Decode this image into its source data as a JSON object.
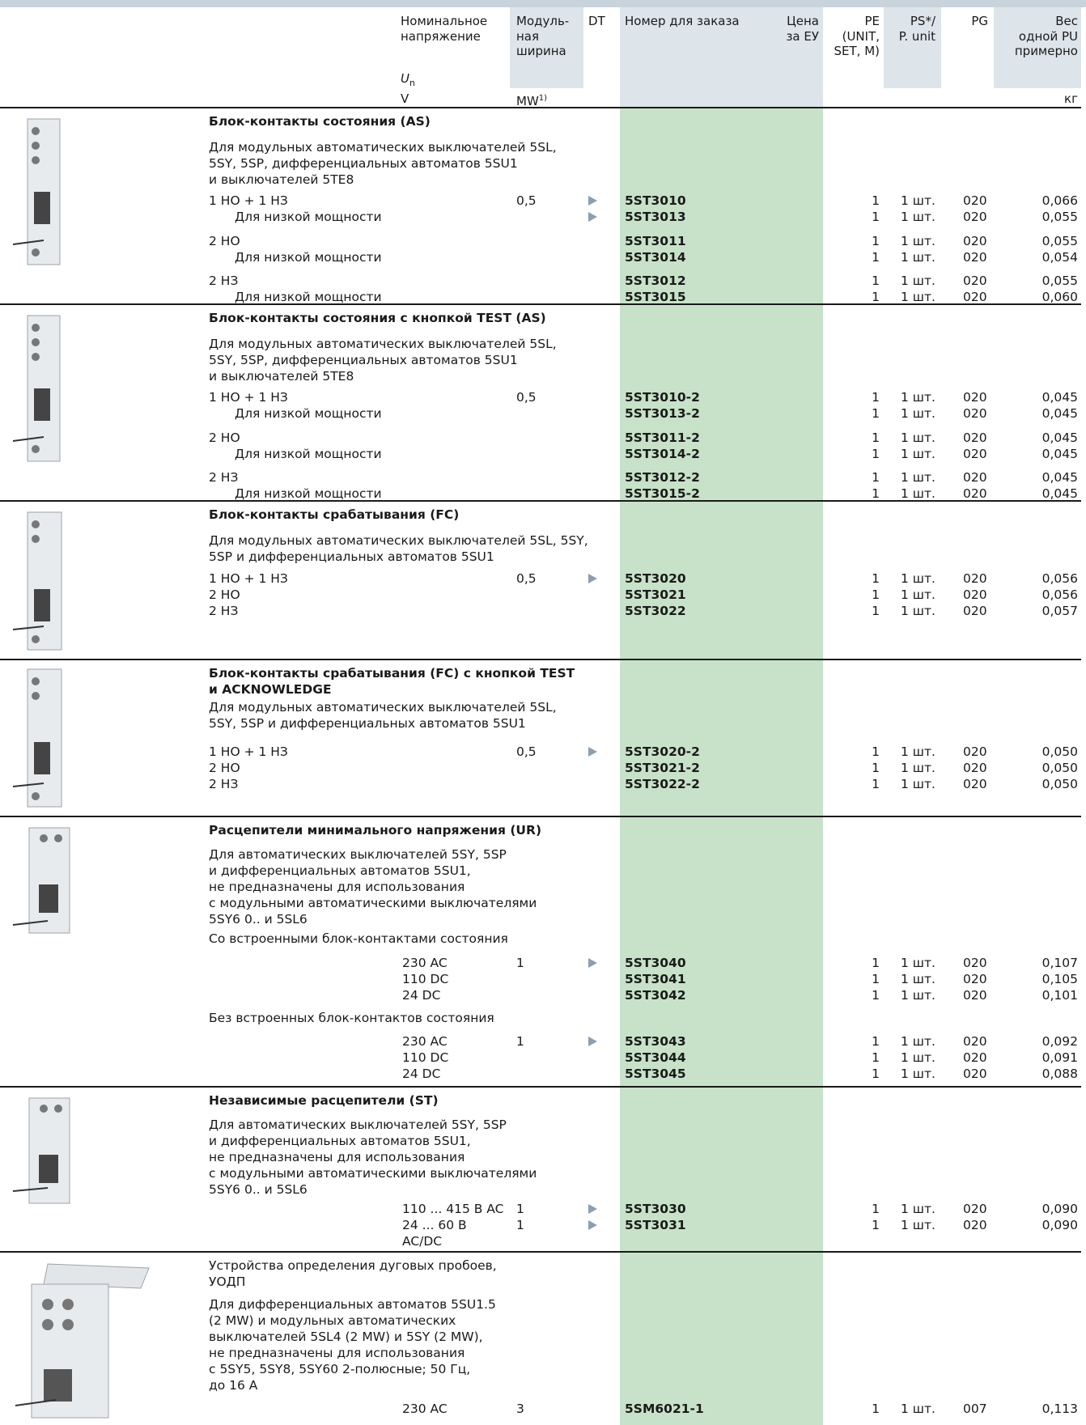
{
  "header": {
    "voltage": [
      "Номинальное",
      "напряжение"
    ],
    "un": "U",
    "un_sub": "n",
    "volt_unit": "V",
    "module": [
      "Модуль-",
      "ная",
      "ширина"
    ],
    "mw_unit": "MW",
    "mw_sup": "1)",
    "dt": "DT",
    "order": "Номер для заказа",
    "price": [
      "Цена",
      "за ЕУ"
    ],
    "pe": [
      "PE",
      "(UNIT,",
      "SET, M)"
    ],
    "ps": [
      "PS*/",
      "P. unit"
    ],
    "pg": "PG",
    "weight": [
      "Вес",
      "одной PU",
      "примерно"
    ],
    "kg": "кг"
  },
  "sections": [
    {
      "title": [
        "Блок-контакты состояния (AS)"
      ],
      "desc": [
        "Для модульных автоматических выключателей 5SL,",
        "5SY, 5SP, дифференциальных автоматов 5SU1",
        "и выключателей 5TE8"
      ],
      "rows": [
        {
          "label": "1 НО + 1 НЗ",
          "mw": "0,5",
          "dt": true,
          "order": "5ST3010",
          "pe": "1",
          "ps": "1 шт.",
          "pg": "020",
          "w": "0,066"
        },
        {
          "label": "Для низкой мощности",
          "dt": true,
          "order": "5ST3013",
          "pe": "1",
          "ps": "1 шт.",
          "pg": "020",
          "w": "0,055"
        },
        {
          "label": "2 НО",
          "order": "5ST3011",
          "pe": "1",
          "ps": "1 шт.",
          "pg": "020",
          "w": "0,055"
        },
        {
          "label": "Для низкой мощности",
          "order": "5ST3014",
          "pe": "1",
          "ps": "1 шт.",
          "pg": "020",
          "w": "0,054"
        },
        {
          "label": "2 НЗ",
          "order": "5ST3012",
          "pe": "1",
          "ps": "1 шт.",
          "pg": "020",
          "w": "0,055"
        },
        {
          "label": "Для низкой мощности",
          "order": "5ST3015",
          "pe": "1",
          "ps": "1 шт.",
          "pg": "020",
          "w": "0,060"
        }
      ]
    },
    {
      "title": [
        "Блок-контакты состояния с кнопкой TEST (AS)"
      ],
      "desc": [
        "Для модульных автоматических выключателей 5SL,",
        "5SY, 5SP, дифференциальных автоматов 5SU1",
        "и выключателей 5TE8"
      ],
      "rows": [
        {
          "label": "1 НО + 1 НЗ",
          "mw": "0,5",
          "order": "5ST3010-2",
          "pe": "1",
          "ps": "1 шт.",
          "pg": "020",
          "w": "0,045"
        },
        {
          "label": "Для низкой мощности",
          "order": "5ST3013-2",
          "pe": "1",
          "ps": "1 шт.",
          "pg": "020",
          "w": "0,045"
        },
        {
          "label": "2 НО",
          "order": "5ST3011-2",
          "pe": "1",
          "ps": "1 шт.",
          "pg": "020",
          "w": "0,045"
        },
        {
          "label": "Для низкой мощности",
          "order": "5ST3014-2",
          "pe": "1",
          "ps": "1 шт.",
          "pg": "020",
          "w": "0,045"
        },
        {
          "label": "2 НЗ",
          "order": "5ST3012-2",
          "pe": "1",
          "ps": "1 шт.",
          "pg": "020",
          "w": "0,045"
        },
        {
          "label": "Для низкой мощности",
          "order": "5ST3015-2",
          "pe": "1",
          "ps": "1 шт.",
          "pg": "020",
          "w": "0,045"
        }
      ]
    },
    {
      "title": [
        "Блок-контакты срабатывания (FC)"
      ],
      "desc": [
        "Для модульных автоматических выключателей 5SL, 5SY,",
        "5SP и дифференциальных автоматов 5SU1"
      ],
      "rows": [
        {
          "label": "1 НО + 1 НЗ",
          "mw": "0,5",
          "dt": true,
          "order": "5ST3020",
          "pe": "1",
          "ps": "1 шт.",
          "pg": "020",
          "w": "0,056"
        },
        {
          "label": "2 НО",
          "order": "5ST3021",
          "pe": "1",
          "ps": "1 шт.",
          "pg": "020",
          "w": "0,056"
        },
        {
          "label": "2 НЗ",
          "order": "5ST3022",
          "pe": "1",
          "ps": "1 шт.",
          "pg": "020",
          "w": "0,057"
        }
      ]
    },
    {
      "title": [
        "Блок-контакты срабатывания (FC) с кнопкой TEST",
        "и ACKNOWLEDGE"
      ],
      "desc": [
        "Для модульных автоматических выключателей 5SL,",
        "5SY, 5SP и дифференциальных автоматов 5SU1"
      ],
      "rows": [
        {
          "label": "1 НО + 1 НЗ",
          "mw": "0,5",
          "dt": true,
          "order": "5ST3020-2",
          "pe": "1",
          "ps": "1 шт.",
          "pg": "020",
          "w": "0,050"
        },
        {
          "label": "2 НО",
          "order": "5ST3021-2",
          "pe": "1",
          "ps": "1 шт.",
          "pg": "020",
          "w": "0,050"
        },
        {
          "label": "2 НЗ",
          "order": "5ST3022-2",
          "pe": "1",
          "ps": "1 шт.",
          "pg": "020",
          "w": "0,050"
        }
      ]
    },
    {
      "title": [
        "Расцепители минимального напряжения (UR)"
      ],
      "desc": [
        "Для автоматических выключателей 5SY, 5SP",
        "и дифференциальных автоматов 5SU1,",
        "не предназначены для использования",
        "с модульными автоматическими выключателями",
        "5SY6 0.. и 5SL6"
      ],
      "sub1": "Со встроенными блок-контактами состояния",
      "rows1": [
        {
          "volt": "230 AC",
          "mw": "1",
          "dt": true,
          "order": "5ST3040",
          "pe": "1",
          "ps": "1 шт.",
          "pg": "020",
          "w": "0,107"
        },
        {
          "volt": "110 DC",
          "order": "5ST3041",
          "pe": "1",
          "ps": "1 шт.",
          "pg": "020",
          "w": "0,105"
        },
        {
          "volt": "24   DC",
          "order": "5ST3042",
          "pe": "1",
          "ps": "1 шт.",
          "pg": "020",
          "w": "0,101"
        }
      ],
      "sub2": "Без встроенных блок-контактов состояния",
      "rows2": [
        {
          "volt": "230 AC",
          "mw": "1",
          "dt": true,
          "order": "5ST3043",
          "pe": "1",
          "ps": "1 шт.",
          "pg": "020",
          "w": "0,092"
        },
        {
          "volt": "110 DC",
          "order": "5ST3044",
          "pe": "1",
          "ps": "1 шт.",
          "pg": "020",
          "w": "0,091"
        },
        {
          "volt": "24   DC",
          "order": "5ST3045",
          "pe": "1",
          "ps": "1 шт.",
          "pg": "020",
          "w": "0,088"
        }
      ]
    },
    {
      "title": [
        "Независимые расцепители (ST)"
      ],
      "desc": [
        "Для автоматических выключателей 5SY, 5SP",
        "и дифференциальных автоматов 5SU1,",
        "не предназначены для использования",
        "с модульными автоматическими выключателями",
        "5SY6 0.. и 5SL6"
      ],
      "rows": [
        {
          "volt": "110 ... 415 В AC",
          "mw": "1",
          "dt": true,
          "order": "5ST3030",
          "pe": "1",
          "ps": "1 шт.",
          "pg": "020",
          "w": "0,090"
        },
        {
          "volt": "24 ... 60 В",
          "volt2": "AC/DC",
          "mw": "1",
          "dt": true,
          "order": "5ST3031",
          "pe": "1",
          "ps": "1 шт.",
          "pg": "020",
          "w": "0,090"
        }
      ]
    },
    {
      "title": [
        "Устройства определения дуговых пробоев,",
        "УОДП"
      ],
      "desc": [
        "Для дифференциальных автоматов 5SU1.5",
        "(2 MW) и модульных автоматических",
        "выключателей 5SL4 (2 MW) и 5SY (2 MW),",
        "не предназначены для использования",
        "с 5SY5, 5SY8, 5SY60 2-полюсные; 50 Гц,",
        "до 16 А"
      ],
      "rows": [
        {
          "volt": "230 AC",
          "mw": "3",
          "order": "5SM6021-1",
          "pe": "1",
          "ps": "1 шт.",
          "pg": "007",
          "w": "0,113"
        }
      ]
    }
  ]
}
